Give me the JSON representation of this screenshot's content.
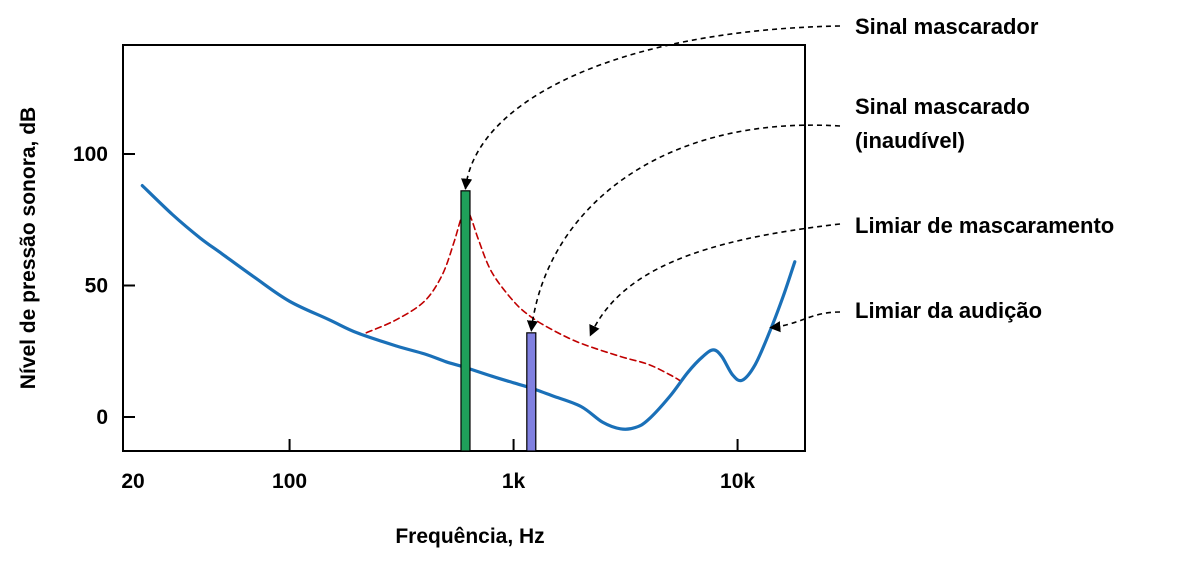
{
  "chart_data": {
    "type": "line",
    "xlabel": "Frequência, Hz",
    "ylabel": "Nível de pressão sonora, dB",
    "x_scale": "log",
    "xlim": [
      20,
      20000
    ],
    "ylim": [
      -12,
      142
    ],
    "x_ticks": [
      {
        "value": 20,
        "label": "20"
      },
      {
        "value": 100,
        "label": "100"
      },
      {
        "value": 1000,
        "label": "1k"
      },
      {
        "value": 10000,
        "label": "10k"
      }
    ],
    "y_ticks": [
      {
        "value": 0,
        "label": "0"
      },
      {
        "value": 50,
        "label": "50"
      },
      {
        "value": 100,
        "label": "100"
      }
    ],
    "grid": false,
    "series": [
      {
        "color": "#1a70b8",
        "style": "solid",
        "points": [
          [
            22,
            88
          ],
          [
            30,
            77
          ],
          [
            40,
            68
          ],
          [
            50,
            62
          ],
          [
            70,
            53
          ],
          [
            100,
            44
          ],
          [
            150,
            37
          ],
          [
            200,
            32
          ],
          [
            300,
            27
          ],
          [
            400,
            24
          ],
          [
            500,
            21
          ],
          [
            600,
            19
          ],
          [
            800,
            15.5
          ],
          [
            1000,
            13
          ],
          [
            1200,
            11
          ],
          [
            1500,
            8
          ],
          [
            2000,
            4
          ],
          [
            2500,
            -2
          ],
          [
            3000,
            -4.5
          ],
          [
            3500,
            -4
          ],
          [
            4000,
            -1
          ],
          [
            5000,
            8
          ],
          [
            6000,
            17
          ],
          [
            7000,
            23
          ],
          [
            7800,
            25.5
          ],
          [
            8500,
            23
          ],
          [
            9500,
            16
          ],
          [
            10500,
            14
          ],
          [
            12000,
            20
          ],
          [
            14000,
            33
          ],
          [
            16000,
            46
          ],
          [
            18000,
            59
          ]
        ]
      },
      {
        "color": "#c00000",
        "style": "dashed",
        "points": [
          [
            220,
            32
          ],
          [
            300,
            37
          ],
          [
            400,
            44
          ],
          [
            480,
            54
          ],
          [
            540,
            66
          ],
          [
            580,
            75
          ],
          [
            610,
            80
          ],
          [
            650,
            75
          ],
          [
            700,
            67
          ],
          [
            800,
            55
          ],
          [
            1000,
            44
          ],
          [
            1200,
            38
          ],
          [
            1500,
            33
          ],
          [
            2000,
            28
          ],
          [
            3000,
            23
          ],
          [
            4000,
            20
          ],
          [
            5000,
            16
          ],
          [
            5500,
            14
          ]
        ]
      }
    ],
    "bars": [
      {
        "x": 610,
        "value": 86,
        "color": "#1fa05a"
      },
      {
        "x": 1200,
        "value": 32,
        "color": "#8080e0"
      }
    ],
    "annotations": [
      {
        "lines": [
          "Sinal mascarador"
        ],
        "target": {
          "x": 610,
          "y": 86
        }
      },
      {
        "lines": [
          "Sinal mascarado",
          "(inaudível)"
        ],
        "target": {
          "x": 1200,
          "y": 32
        }
      },
      {
        "lines": [
          "Limiar de mascaramento"
        ],
        "target": {
          "x": 2200,
          "y": 31
        }
      },
      {
        "lines": [
          "Limiar da audição"
        ],
        "target": {
          "x": 14000,
          "y": 34
        }
      }
    ]
  }
}
